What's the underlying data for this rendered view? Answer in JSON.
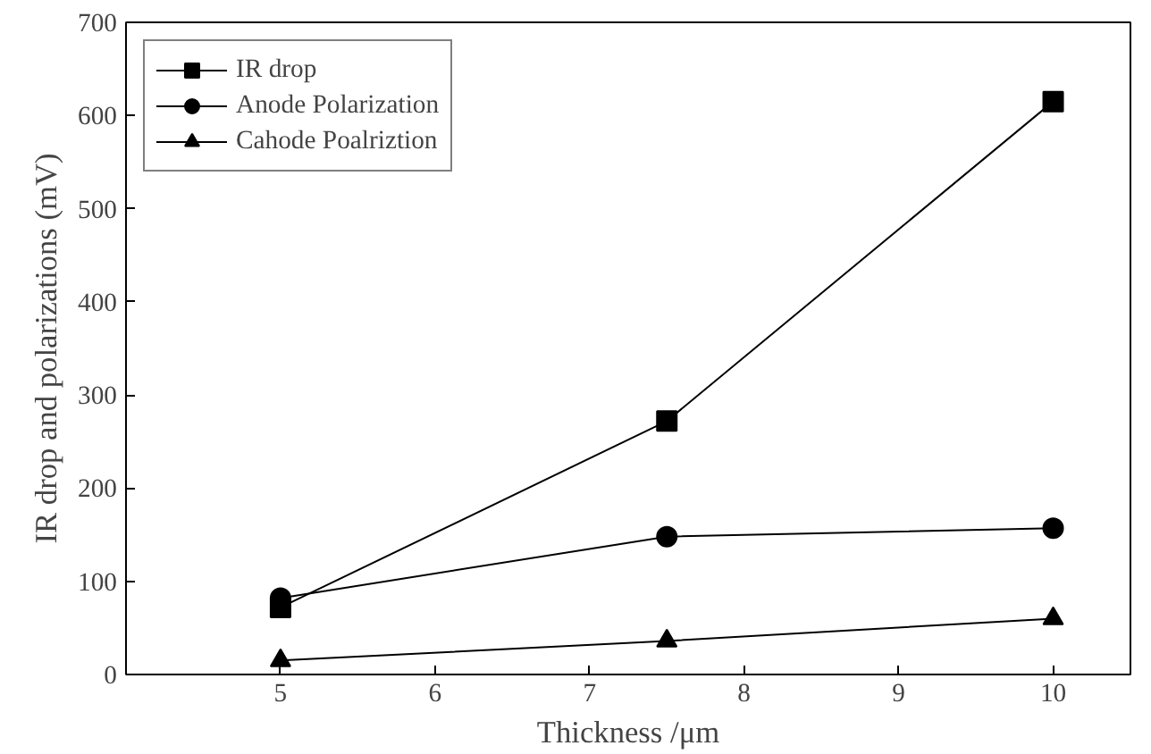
{
  "chart_data": {
    "type": "line",
    "xlabel": "Thickness /μm",
    "ylabel": "IR drop and polarizations (mV)",
    "x": [
      5,
      7.5,
      10
    ],
    "series": [
      {
        "name": "IR drop",
        "color": "#000000",
        "marker": "square",
        "values": [
          72,
          272,
          615
        ]
      },
      {
        "name": "Anode Polarization",
        "color": "#000000",
        "marker": "circle",
        "values": [
          82,
          148,
          157
        ]
      },
      {
        "name": "Cahode Poalriztion",
        "color": "#000000",
        "marker": "triangle",
        "values": [
          15,
          36,
          60
        ]
      }
    ],
    "xlim": [
      4,
      10.5
    ],
    "xticks": [
      5,
      6,
      7,
      8,
      9,
      10
    ],
    "ylim": [
      0,
      700
    ],
    "yticks": [
      0,
      100,
      200,
      300,
      400,
      500,
      600,
      700
    ],
    "grid": false,
    "legend": "top left",
    "line_style": "solid"
  }
}
